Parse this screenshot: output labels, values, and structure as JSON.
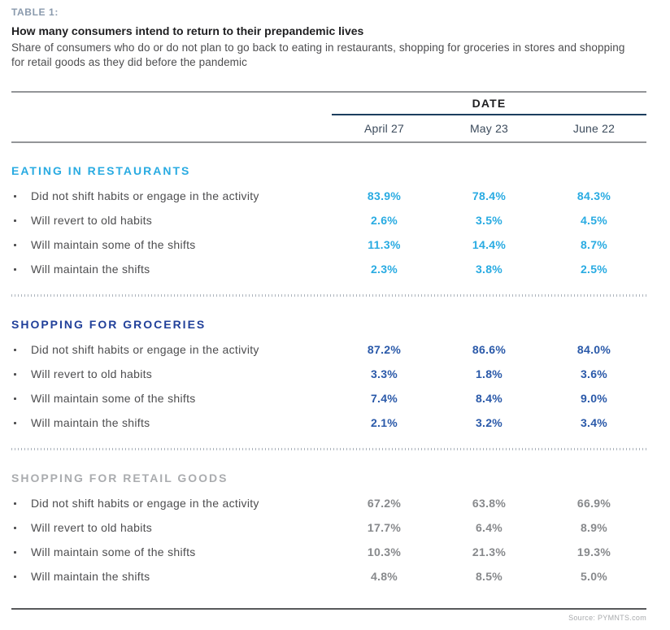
{
  "header": {
    "table_label": "TABLE 1:",
    "title": "How many consumers intend to return to their prepandemic lives",
    "subtitle": "Share of consumers who do or do not plan to go back to eating in restaurants, shopping for groceries in stores and shopping for retail goods as they did before the pandemic"
  },
  "chart_data": {
    "type": "table",
    "title": "How many consumers intend to return to their prepandemic lives",
    "column_group_label": "DATE",
    "columns": [
      "April 27",
      "May 23",
      "June 22"
    ],
    "sections": [
      {
        "title": "EATING IN RESTAURANTS",
        "header_color": "#29abe2",
        "value_color": "#29abe2",
        "rows": [
          {
            "label": "Did not shift habits or engage in the activity",
            "values": [
              "83.9%",
              "78.4%",
              "84.3%"
            ]
          },
          {
            "label": "Will revert to old habits",
            "values": [
              "2.6%",
              "3.5%",
              "4.5%"
            ]
          },
          {
            "label": "Will maintain some of the shifts",
            "values": [
              "11.3%",
              "14.4%",
              "8.7%"
            ]
          },
          {
            "label": "Will maintain the shifts",
            "values": [
              "2.3%",
              "3.8%",
              "2.5%"
            ]
          }
        ]
      },
      {
        "title": "SHOPPING FOR GROCERIES",
        "header_color": "#21409a",
        "value_color": "#2a59a9",
        "rows": [
          {
            "label": "Did not shift habits or engage in the activity",
            "values": [
              "87.2%",
              "86.6%",
              "84.0%"
            ]
          },
          {
            "label": "Will revert to old habits",
            "values": [
              "3.3%",
              "1.8%",
              "3.6%"
            ]
          },
          {
            "label": "Will maintain some of the shifts",
            "values": [
              "7.4%",
              "8.4%",
              "9.0%"
            ]
          },
          {
            "label": "Will maintain the shifts",
            "values": [
              "2.1%",
              "3.2%",
              "3.4%"
            ]
          }
        ]
      },
      {
        "title": "SHOPPING FOR RETAIL GOODS",
        "header_color": "#aaacaf",
        "value_color": "#87898c",
        "rows": [
          {
            "label": "Did not shift habits or engage in the activity",
            "values": [
              "67.2%",
              "63.8%",
              "66.9%"
            ]
          },
          {
            "label": "Will revert to old habits",
            "values": [
              "17.7%",
              "6.4%",
              "8.9%"
            ]
          },
          {
            "label": "Will maintain some of the shifts",
            "values": [
              "10.3%",
              "21.3%",
              "19.3%"
            ]
          },
          {
            "label": "Will maintain the shifts",
            "values": [
              "4.8%",
              "8.5%",
              "5.0%"
            ]
          }
        ]
      }
    ],
    "source": "Source: PYMNTS.com",
    "colors": {
      "light_blue": "#29abe2",
      "navy": "#21409a",
      "gray": "#aaacaf",
      "rule_gray": "#939598",
      "date_underline": "#1c3e5e"
    }
  }
}
